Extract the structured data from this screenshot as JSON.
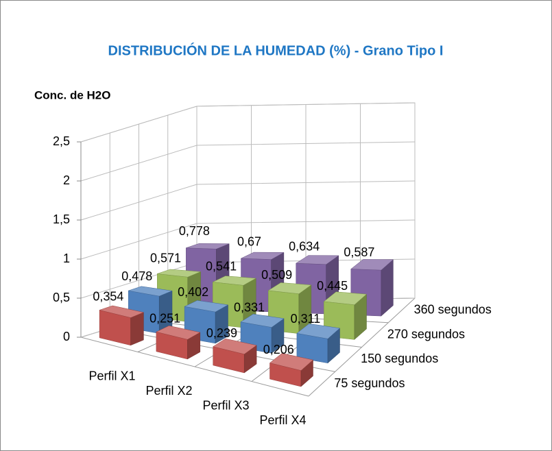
{
  "chart_data": {
    "type": "bar3d",
    "title": "DISTRIBUCIÓN DE LA HUMEDAD (%)  - Grano Tipo I",
    "y_label": "Conc. de H2O",
    "categories": [
      "Perfil X1",
      "Perfil X2",
      "Perfil X3",
      "Perfil X4"
    ],
    "series": [
      {
        "name": "75 segundos",
        "color": "#c0504d",
        "values": [
          0.354,
          0.251,
          0.239,
          0.206
        ],
        "value_labels": [
          "0,354",
          "0,251",
          "0,239",
          "0,206"
        ]
      },
      {
        "name": "150 segundos",
        "color": "#4f81bd",
        "values": [
          0.478,
          0.402,
          0.331,
          0.311
        ],
        "value_labels": [
          "0,478",
          "0,402",
          "0,331",
          "0,311"
        ]
      },
      {
        "name": "270 segundos",
        "color": "#9bbb59",
        "values": [
          0.571,
          0.541,
          0.509,
          0.445
        ],
        "value_labels": [
          "0,571",
          "0,541",
          "0,509",
          "0,445"
        ]
      },
      {
        "name": "360 segundos",
        "color": "#8064a2",
        "values": [
          0.778,
          0.67,
          0.634,
          0.587
        ],
        "value_labels": [
          "0,778",
          "0,67",
          "0,634",
          "0,587"
        ]
      }
    ],
    "ylim": [
      0,
      2.5
    ],
    "yticks": [
      0,
      {
        "value": 0.5,
        "label": "0,5"
      },
      1,
      {
        "value": 1.5,
        "label": "1,5"
      },
      2,
      {
        "value": 2.5,
        "label": "2,5"
      }
    ],
    "grid": true
  }
}
